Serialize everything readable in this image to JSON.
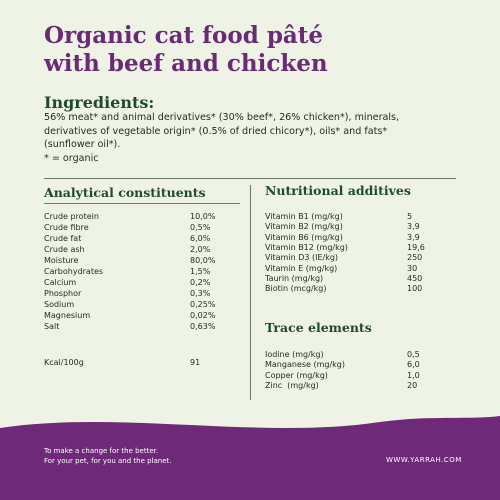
{
  "title": {
    "lines": [
      "Organic cat food pâté",
      "with beef and chicken"
    ]
  },
  "ingredients": {
    "heading": "Ingredients:",
    "lines": [
      "56% meat* and animal derivatives* (30% beef*, 26% chicken*), minerals,",
      "derivatives of vegetable origin* (0.5% of dried chicory*), oils* and fats*",
      "(sunflower oil*).",
      "* = organic"
    ]
  },
  "analytical": {
    "heading": "Analytical constituents",
    "rows": [
      [
        "Crude protein",
        "10,0%"
      ],
      [
        "Crude fibre",
        "0,5%"
      ],
      [
        "Crude fat",
        "6,0%"
      ],
      [
        "Crude ash",
        "2,0%"
      ],
      [
        "Moisture",
        "80,0%"
      ],
      [
        "Carbohydrates",
        "1,5%"
      ],
      [
        "Calcium",
        "0,2%"
      ],
      [
        "Phosphor",
        "0,3%"
      ],
      [
        "Sodium",
        "0,25%"
      ],
      [
        "Magnesium",
        "0,02%"
      ],
      [
        "Salt",
        "0,63%"
      ]
    ],
    "energy": [
      "Kcal/100g",
      "91"
    ]
  },
  "nutritional": {
    "heading": "Nutritional additives",
    "rows": [
      [
        "Vitamin B1 (mg/kg)",
        "5"
      ],
      [
        "Vitamin B2 (mg/kg)",
        "3,9"
      ],
      [
        "Vitamin B6 (mg/kg)",
        "3,9"
      ],
      [
        "Vitamin B12 (mg/kg)",
        "19,6"
      ],
      [
        "Vitamin D3 (IE/kg)",
        "250"
      ],
      [
        "Vitamin E (mg/kg)",
        "30"
      ],
      [
        "Taurin (mg/kg)",
        "450"
      ],
      [
        "Biotin (mcg/kg)",
        "100"
      ]
    ]
  },
  "trace": {
    "heading": "Trace elements",
    "rows": [
      [
        "Iodine (mg/kg)",
        "0,5"
      ],
      [
        "Manganese (mg/kg)",
        "6,0"
      ],
      [
        "Copper (mg/kg)",
        "1,0"
      ],
      [
        "Zinc  (mg/kg)",
        "20"
      ]
    ]
  },
  "footer": {
    "lines": [
      "To make a change for the better.",
      "For your pet, for you and the planet."
    ],
    "url": "WWW.YARRAH.COM"
  }
}
